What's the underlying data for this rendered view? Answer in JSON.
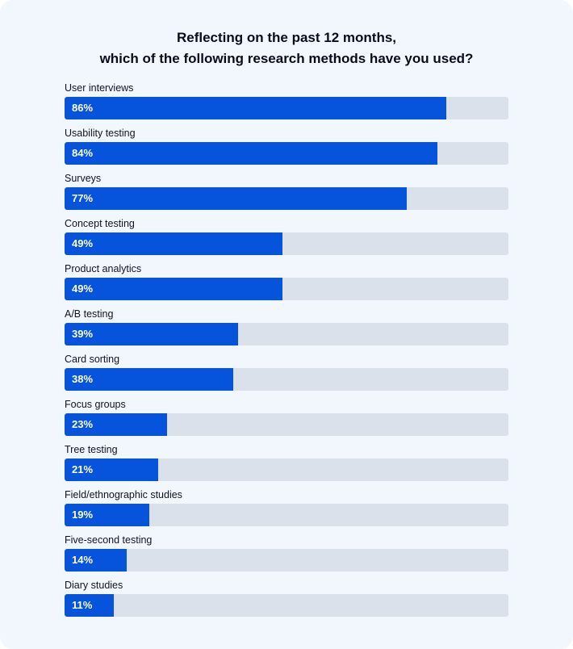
{
  "colors": {
    "background": "#f1f7fd",
    "bar_fill": "#0654dc",
    "bar_track": "#dae1ea",
    "text": "#101424"
  },
  "chart_data": {
    "type": "bar",
    "orientation": "horizontal",
    "title_lines": [
      "Reflecting on the past 12 months,",
      "which of the following research methods have you used?"
    ],
    "xlim": [
      0,
      100
    ],
    "grid": false,
    "legend": "none",
    "categories": [
      "User interviews",
      "Usability testing",
      "Surveys",
      "Concept testing",
      "Product analytics",
      "A/B testing",
      "Card sorting",
      "Focus groups",
      "Tree testing",
      "Field/ethnographic studies",
      "Five-second testing",
      "Diary studies"
    ],
    "values": [
      86,
      84,
      77,
      49,
      49,
      39,
      38,
      23,
      21,
      19,
      14,
      11
    ],
    "value_labels": [
      "86%",
      "84%",
      "77%",
      "49%",
      "49%",
      "39%",
      "38%",
      "23%",
      "21%",
      "19%",
      "14%",
      "11%"
    ]
  }
}
